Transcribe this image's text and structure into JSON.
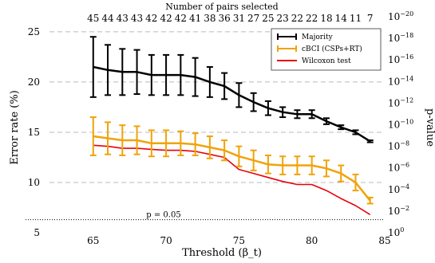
{
  "chart_data": {
    "type": "line",
    "title": "",
    "xlabel": "Threshold (β_t)",
    "ylabel": "Error rate (%)",
    "y2label": "p-value",
    "top_axis_label": "Number of pairs selected",
    "xlim": [
      62,
      85
    ],
    "ylim": [
      5,
      26.5
    ],
    "y2_log_exponent_range": [
      0,
      -20
    ],
    "x_ticks": [
      "65",
      "70",
      "75",
      "80",
      "85"
    ],
    "y_ticks": [
      "5",
      "10",
      "15",
      "20",
      "25"
    ],
    "y2_ticks": [
      {
        "base": "10",
        "exp": "0"
      },
      {
        "base": "10",
        "exp": "−2"
      },
      {
        "base": "10",
        "exp": "−4"
      },
      {
        "base": "10",
        "exp": "−6"
      },
      {
        "base": "10",
        "exp": "−8"
      },
      {
        "base": "10",
        "exp": "−10"
      },
      {
        "base": "10",
        "exp": "−12"
      },
      {
        "base": "10",
        "exp": "−14"
      },
      {
        "base": "10",
        "exp": "−16"
      },
      {
        "base": "10",
        "exp": "−18"
      },
      {
        "base": "10",
        "exp": "−20"
      }
    ],
    "x": [
      65,
      66,
      67,
      68,
      69,
      70,
      71,
      72,
      73,
      74,
      75,
      76,
      77,
      78,
      79,
      80,
      81,
      82,
      83,
      84
    ],
    "top_ticks": [
      "45",
      "44",
      "43",
      "43",
      "42",
      "42",
      "42",
      "41",
      "38",
      "36",
      "31",
      "27",
      "25",
      "23",
      "22",
      "22",
      "18",
      "14",
      "11",
      "7"
    ],
    "series": [
      {
        "name": "Majority",
        "color": "#000000",
        "values": [
          21.5,
          21.2,
          21.0,
          21.0,
          20.7,
          20.7,
          20.7,
          20.5,
          20.0,
          19.6,
          18.7,
          18.0,
          17.4,
          17.0,
          16.8,
          16.8,
          16.1,
          15.5,
          15.0,
          14.1
        ],
        "errors": [
          3.0,
          2.5,
          2.3,
          2.2,
          2.0,
          2.0,
          2.0,
          1.9,
          1.5,
          1.3,
          1.2,
          0.9,
          0.7,
          0.5,
          0.4,
          0.4,
          0.3,
          0.2,
          0.2,
          0.1
        ]
      },
      {
        "name": "cBCI (CSPs+RT)",
        "color": "#f0a30a",
        "values": [
          14.6,
          14.4,
          14.2,
          14.2,
          13.9,
          13.9,
          13.9,
          13.8,
          13.5,
          13.2,
          12.6,
          12.2,
          11.8,
          11.7,
          11.7,
          11.7,
          11.4,
          10.9,
          10.0,
          8.2
        ],
        "errors": [
          1.9,
          1.6,
          1.5,
          1.4,
          1.3,
          1.3,
          1.2,
          1.1,
          1.1,
          1.0,
          1.0,
          1.0,
          0.9,
          0.9,
          0.9,
          0.9,
          0.8,
          0.8,
          0.8,
          0.3
        ]
      },
      {
        "name": "Wilcoxon test",
        "color": "#e8000b",
        "values": [
          13.7,
          13.6,
          13.4,
          13.4,
          13.3,
          13.2,
          13.2,
          13.1,
          12.8,
          12.5,
          11.3,
          10.9,
          10.5,
          10.1,
          9.8,
          9.8,
          9.2,
          8.4,
          7.7,
          6.8
        ]
      }
    ],
    "threshold_line": {
      "label": "p = 0.05",
      "y": 6.3
    },
    "grid": true,
    "legend_position": "top-right"
  }
}
